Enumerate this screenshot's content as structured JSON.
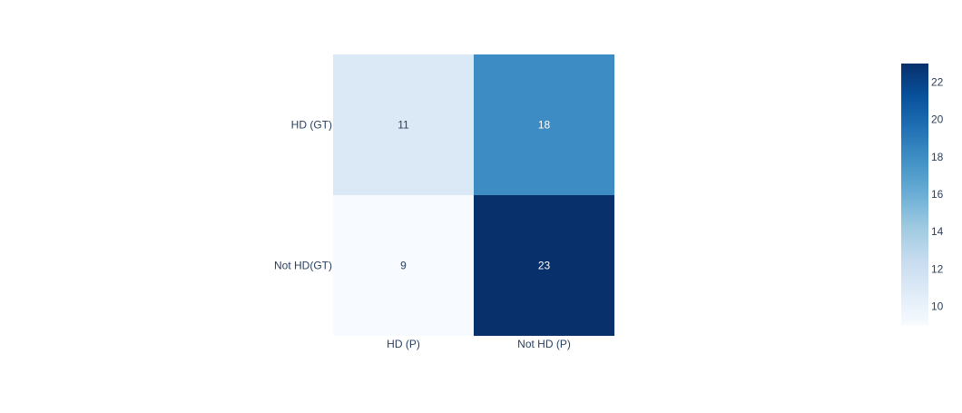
{
  "chart_data": {
    "type": "heatmap",
    "title": "",
    "xlabel": "",
    "ylabel": "",
    "x_categories": [
      "HD (P)",
      "Not HD (P)"
    ],
    "y_categories": [
      "HD (GT)",
      "Not HD(GT)"
    ],
    "z": [
      [
        11,
        18
      ],
      [
        9,
        23
      ]
    ],
    "colorscale": "Blues",
    "colorscale_stops": [
      "#f7fbff",
      "#deebf7",
      "#c6dbef",
      "#9ecae1",
      "#6baed6",
      "#4292c6",
      "#2171b5",
      "#08519c",
      "#08306b"
    ],
    "zmin": 9,
    "zmax": 23,
    "colorbar_ticks": [
      "10",
      "12",
      "14",
      "16",
      "18",
      "20",
      "22"
    ],
    "annotation_dark_text_color": "#2a3f5f",
    "annotation_light_text_color": "#ffffff",
    "tick_label_color": "#2a3f5f"
  }
}
